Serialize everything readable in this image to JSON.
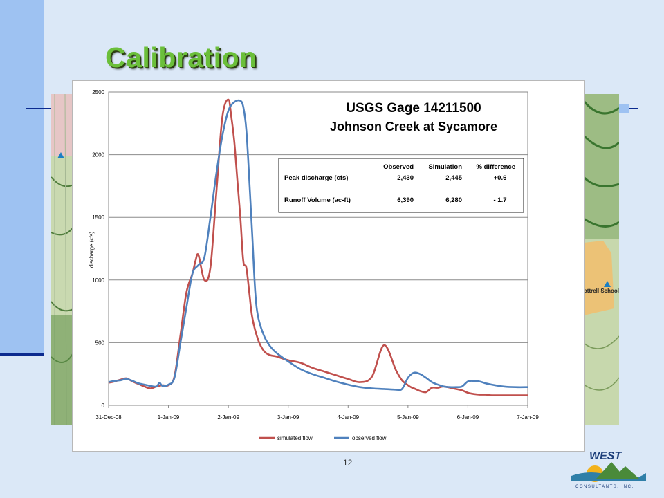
{
  "slide": {
    "title": "Calibration",
    "page_number": "12",
    "logo": {
      "name": "WEST",
      "subtitle": "CONSULTANTS, INC."
    },
    "map_labels": {
      "right": "Cottrell School"
    },
    "colors": {
      "title": "#6bbf3a",
      "background": "#dbe8f7",
      "accent_bar": "#9ec2f2",
      "rule": "#0b2a8f"
    }
  },
  "chart_data": {
    "type": "line",
    "title": "USGS Gage 14211500",
    "subtitle": "Johnson Creek at Sycamore",
    "ylabel": "discharge (cfs)",
    "xlabel": "",
    "ylim": [
      0,
      2500
    ],
    "yticks": [
      "0",
      "500",
      "1000",
      "1500",
      "2000",
      "2500"
    ],
    "xticks": [
      "31-Dec-08",
      "1-Jan-09",
      "2-Jan-09",
      "3-Jan-09",
      "4-Jan-09",
      "5-Jan-09",
      "6-Jan-09",
      "7-Jan-09"
    ],
    "xlim_days": [
      0,
      5,
      10,
      15,
      20,
      25,
      30,
      35
    ],
    "grid": true,
    "legend_position": "bottom",
    "series": [
      {
        "name": "simulated flow",
        "color": "#c0504d",
        "x": [
          0,
          0.5,
          1,
          1.5,
          2,
          2.5,
          3,
          3.5,
          4,
          4.5,
          5,
          5.5,
          6,
          6.5,
          7,
          7.25,
          7.5,
          8,
          8.5,
          9,
          9.5,
          10,
          10.25,
          10.5,
          10.75,
          11,
          11.25,
          11.5,
          11.75,
          12,
          12.5,
          13,
          13.5,
          14,
          15,
          16,
          17,
          18,
          19,
          20,
          21,
          22,
          23,
          24,
          24.5,
          25,
          25.25,
          25.5,
          25.75,
          26,
          26.5,
          27,
          27.5,
          28,
          29,
          29.5,
          30,
          30.5,
          31,
          31.5,
          32,
          33,
          34,
          35
        ],
        "y": [
          180,
          190,
          205,
          215,
          190,
          170,
          150,
          135,
          150,
          160,
          160,
          230,
          560,
          900,
          1050,
          1150,
          1200,
          1000,
          1100,
          1700,
          2300,
          2440,
          2300,
          2100,
          1800,
          1500,
          1150,
          1100,
          900,
          700,
          520,
          430,
          400,
          390,
          360,
          340,
          300,
          270,
          240,
          210,
          185,
          230,
          480,
          280,
          200,
          160,
          145,
          135,
          125,
          115,
          105,
          140,
          140,
          150,
          130,
          120,
          100,
          90,
          85,
          85,
          80,
          80,
          80,
          80
        ]
      },
      {
        "name": "observed flow",
        "color": "#4f81bd",
        "x": [
          0,
          0.5,
          1,
          1.5,
          2,
          2.5,
          3,
          3.5,
          4,
          4.25,
          4.5,
          5,
          5.5,
          6,
          6.5,
          7,
          7.5,
          8,
          8.5,
          9,
          9.5,
          10,
          10.5,
          11,
          11.25,
          11.5,
          11.75,
          12,
          12.25,
          12.5,
          13,
          13.5,
          14,
          15,
          16,
          17,
          18,
          19,
          20,
          21,
          22,
          23,
          24,
          24.5,
          25,
          25.5,
          26,
          26.5,
          27,
          27.5,
          28,
          28.5,
          29,
          29.5,
          30,
          30.5,
          31,
          31.5,
          32,
          33,
          34,
          35
        ],
        "y": [
          185,
          195,
          200,
          210,
          195,
          175,
          165,
          155,
          150,
          180,
          155,
          165,
          220,
          500,
          780,
          1050,
          1120,
          1180,
          1500,
          1850,
          2150,
          2350,
          2420,
          2430,
          2380,
          2200,
          1800,
          1350,
          900,
          700,
          550,
          470,
          420,
          350,
          290,
          250,
          220,
          190,
          165,
          145,
          135,
          130,
          125,
          130,
          220,
          260,
          250,
          220,
          185,
          165,
          150,
          145,
          145,
          150,
          190,
          195,
          190,
          175,
          165,
          150,
          145,
          145
        ]
      }
    ],
    "summary_table": {
      "headers": [
        "",
        "Observed",
        "Simulation",
        "% difference"
      ],
      "rows": [
        [
          "Peak discharge (cfs)",
          "2,430",
          "2,445",
          "+0.6"
        ],
        [
          "Runoff Volume (ac-ft)",
          "6,390",
          "6,280",
          "- 1.7"
        ]
      ]
    }
  }
}
